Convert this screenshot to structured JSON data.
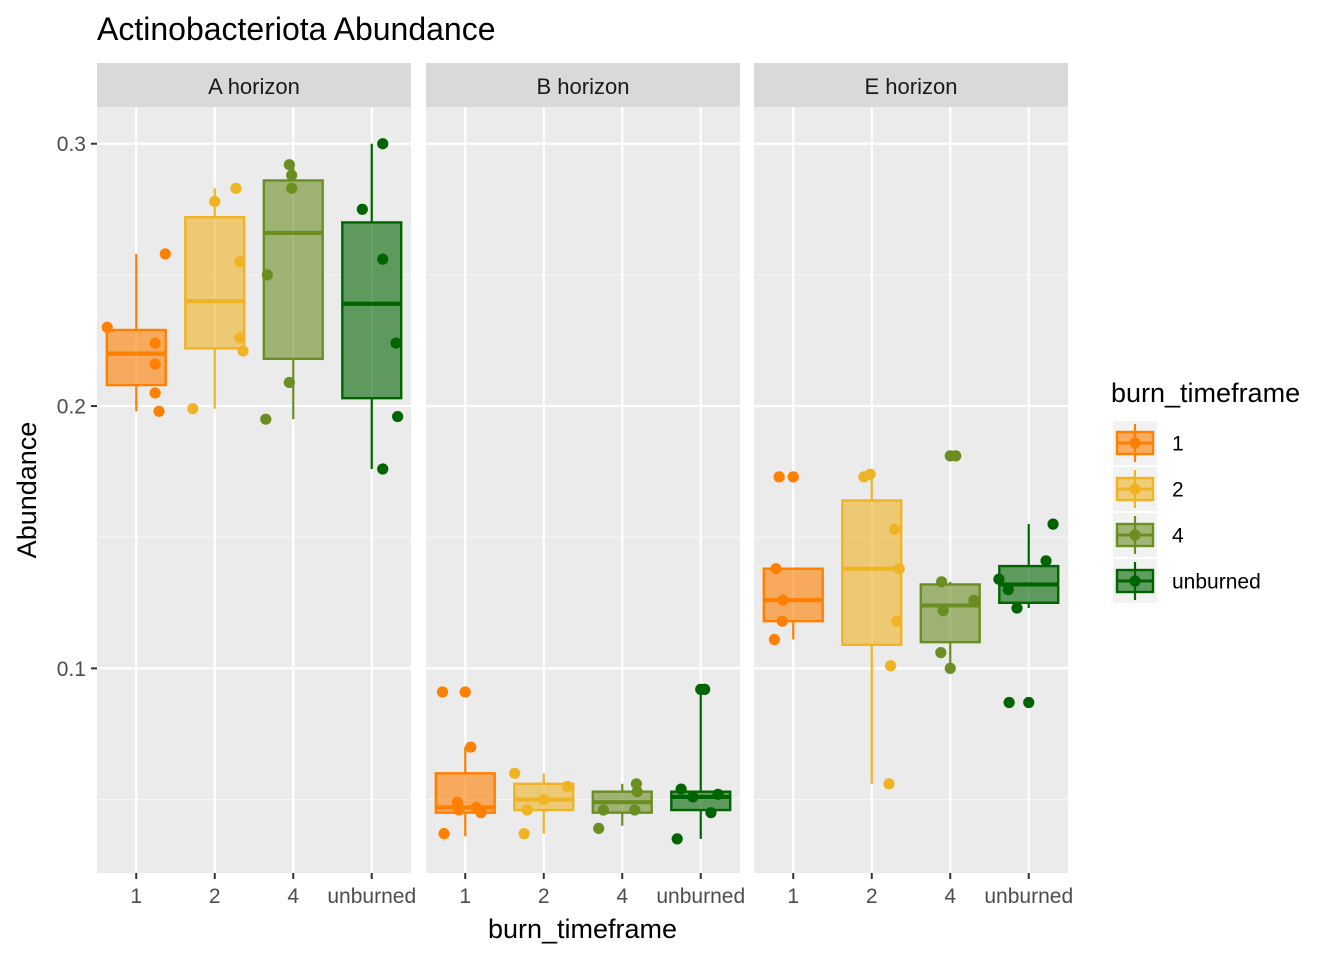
{
  "chart_data": {
    "type": "box",
    "title": "Actinobacteriota Abundance",
    "xlabel": "burn_timeframe",
    "ylabel": "Abundance",
    "ylim": [
      0.022,
      0.314
    ],
    "y_ticks": [
      0.1,
      0.2,
      0.3
    ],
    "y_tick_labels": [
      "0.1",
      "0.2",
      "0.3"
    ],
    "y_minor_ticks": [
      0.05,
      0.15,
      0.25
    ],
    "categories": [
      "1",
      "2",
      "4",
      "unburned"
    ],
    "grid": true,
    "legend": {
      "title": "burn_timeframe",
      "position": "right",
      "entries": [
        "1",
        "2",
        "4",
        "unburned"
      ]
    },
    "colors": {
      "1": "#ff7f00",
      "2": "#f0b323",
      "4": "#6b8e23",
      "unburned": "#006400"
    },
    "panels": [
      {
        "name": "A horizon",
        "boxes": [
          {
            "category": "1",
            "lower_whisker": 0.198,
            "q1": 0.208,
            "median": 0.22,
            "q3": 0.229,
            "upper_whisker": 0.258,
            "points": [
              [
                -0.37,
                0.23
              ],
              [
                0.24,
                0.224
              ],
              [
                0.24,
                0.216
              ],
              [
                0.24,
                0.205
              ],
              [
                0.29,
                0.198
              ],
              [
                0.37,
                0.258
              ]
            ]
          },
          {
            "category": "2",
            "lower_whisker": 0.199,
            "q1": 0.222,
            "median": 0.24,
            "q3": 0.272,
            "upper_whisker": 0.283,
            "points": [
              [
                -0.28,
                0.199
              ],
              [
                0.0,
                0.278
              ],
              [
                0.27,
                0.283
              ],
              [
                0.32,
                0.255
              ],
              [
                0.32,
                0.226
              ],
              [
                0.36,
                0.221
              ]
            ]
          },
          {
            "category": "4",
            "lower_whisker": 0.195,
            "q1": 0.218,
            "median": 0.266,
            "q3": 0.286,
            "upper_whisker": 0.293,
            "points": [
              [
                -0.35,
                0.195
              ],
              [
                -0.33,
                0.25
              ],
              [
                -0.05,
                0.292
              ],
              [
                -0.02,
                0.288
              ],
              [
                -0.02,
                0.283
              ],
              [
                -0.05,
                0.209
              ]
            ]
          },
          {
            "category": "unburned",
            "lower_whisker": 0.176,
            "q1": 0.203,
            "median": 0.239,
            "q3": 0.27,
            "upper_whisker": 0.3,
            "points": [
              [
                -0.12,
                0.275
              ],
              [
                0.14,
                0.3
              ],
              [
                0.14,
                0.256
              ],
              [
                0.14,
                0.176
              ],
              [
                0.31,
                0.224
              ],
              [
                0.33,
                0.196
              ]
            ]
          }
        ]
      },
      {
        "name": "B horizon",
        "boxes": [
          {
            "category": "1",
            "lower_whisker": 0.036,
            "q1": 0.045,
            "median": 0.047,
            "q3": 0.06,
            "upper_whisker": 0.07,
            "points": [
              [
                -0.29,
                0.091
              ],
              [
                0.0,
                0.091
              ],
              [
                0.07,
                0.07
              ],
              [
                -0.1,
                0.049
              ],
              [
                -0.08,
                0.046
              ],
              [
                0.14,
                0.047
              ],
              [
                0.2,
                0.045
              ],
              [
                -0.27,
                0.037
              ]
            ]
          },
          {
            "category": "2",
            "lower_whisker": 0.037,
            "q1": 0.046,
            "median": 0.05,
            "q3": 0.056,
            "upper_whisker": 0.06,
            "points": [
              [
                -0.37,
                0.06
              ],
              [
                -0.21,
                0.046
              ],
              [
                0.0,
                0.05
              ],
              [
                0.3,
                0.055
              ],
              [
                -0.25,
                0.037
              ]
            ]
          },
          {
            "category": "4",
            "lower_whisker": 0.04,
            "q1": 0.045,
            "median": 0.049,
            "q3": 0.053,
            "upper_whisker": 0.056,
            "points": [
              [
                -0.3,
                0.039
              ],
              [
                -0.24,
                0.046
              ],
              [
                0.18,
                0.056
              ],
              [
                0.19,
                0.053
              ],
              [
                0.16,
                0.046
              ]
            ]
          },
          {
            "category": "unburned",
            "lower_whisker": 0.035,
            "q1": 0.046,
            "median": 0.051,
            "q3": 0.053,
            "upper_whisker": 0.092,
            "points": [
              [
                -0.3,
                0.035
              ],
              [
                -0.25,
                0.054
              ],
              [
                -0.1,
                0.051
              ],
              [
                0.0,
                0.092
              ],
              [
                0.05,
                0.092
              ],
              [
                0.13,
                0.045
              ],
              [
                0.22,
                0.052
              ]
            ]
          }
        ]
      },
      {
        "name": "E horizon",
        "boxes": [
          {
            "category": "1",
            "lower_whisker": 0.111,
            "q1": 0.118,
            "median": 0.126,
            "q3": 0.138,
            "upper_whisker": 0.138,
            "points": [
              [
                -0.18,
                0.173
              ],
              [
                0.0,
                0.173
              ],
              [
                -0.22,
                0.138
              ],
              [
                -0.13,
                0.126
              ],
              [
                -0.14,
                0.118
              ],
              [
                -0.24,
                0.111
              ]
            ]
          },
          {
            "category": "2",
            "lower_whisker": 0.056,
            "q1": 0.109,
            "median": 0.138,
            "q3": 0.164,
            "upper_whisker": 0.174,
            "points": [
              [
                -0.1,
                0.173
              ],
              [
                -0.02,
                0.174
              ],
              [
                0.29,
                0.153
              ],
              [
                0.35,
                0.138
              ],
              [
                0.32,
                0.118
              ],
              [
                0.24,
                0.101
              ],
              [
                0.22,
                0.056
              ]
            ]
          },
          {
            "category": "4",
            "lower_whisker": 0.1,
            "q1": 0.11,
            "median": 0.124,
            "q3": 0.132,
            "upper_whisker": 0.133,
            "points": [
              [
                0.0,
                0.181
              ],
              [
                0.07,
                0.181
              ],
              [
                -0.11,
                0.133
              ],
              [
                0.3,
                0.126
              ],
              [
                -0.09,
                0.122
              ],
              [
                -0.12,
                0.106
              ],
              [
                0.0,
                0.1
              ]
            ]
          },
          {
            "category": "unburned",
            "lower_whisker": 0.123,
            "q1": 0.125,
            "median": 0.132,
            "q3": 0.139,
            "upper_whisker": 0.155,
            "points": [
              [
                -0.38,
                0.134
              ],
              [
                -0.26,
                0.13
              ],
              [
                -0.15,
                0.123
              ],
              [
                0.22,
                0.141
              ],
              [
                0.31,
                0.155
              ],
              [
                -0.25,
                0.087
              ],
              [
                0.0,
                0.087
              ]
            ]
          }
        ]
      }
    ]
  }
}
